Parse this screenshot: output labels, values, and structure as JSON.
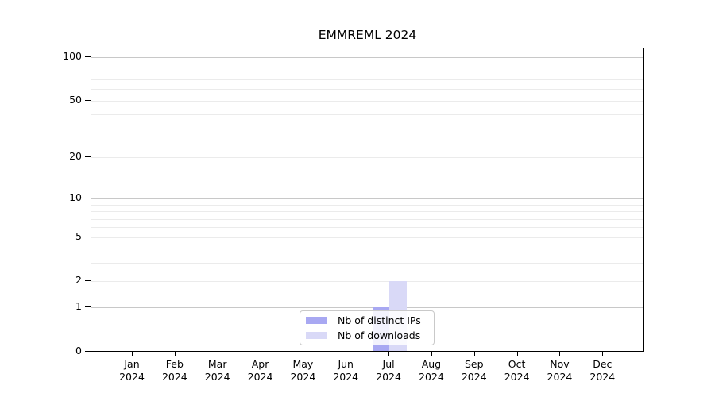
{
  "chart_data": {
    "type": "bar",
    "title": "EMMREML 2024",
    "year_label": "2024",
    "categories": [
      "Jan",
      "Feb",
      "Mar",
      "Apr",
      "May",
      "Jun",
      "Jul",
      "Aug",
      "Sep",
      "Oct",
      "Nov",
      "Dec"
    ],
    "series": [
      {
        "name": "Nb of distinct IPs",
        "color": "#a8a8f2",
        "values": [
          0,
          0,
          0,
          0,
          0,
          0,
          1,
          0,
          0,
          0,
          0,
          0
        ]
      },
      {
        "name": "Nb of downloads",
        "color": "#d9d9f7",
        "values": [
          0,
          0,
          0,
          0,
          0,
          0,
          2,
          0,
          0,
          0,
          0,
          0
        ]
      }
    ],
    "y_axis": {
      "scale": "log10(1+v)",
      "ticks": [
        0,
        1,
        2,
        5,
        10,
        20,
        50,
        100
      ],
      "major_gridlines": [
        1,
        10,
        100
      ],
      "minor_gridlines": [
        2,
        3,
        4,
        5,
        6,
        7,
        8,
        9,
        20,
        30,
        40,
        50,
        60,
        70,
        80,
        90
      ],
      "range": [
        0,
        115
      ]
    },
    "legend": {
      "position": "lower center",
      "entries": [
        "Nb of distinct IPs",
        "Nb of downloads"
      ]
    },
    "colors": {
      "background": "#ffffff",
      "axis": "#000000",
      "text": "#000000",
      "major_grid": "#c8c8c8",
      "minor_grid": "#ebebeb"
    }
  }
}
